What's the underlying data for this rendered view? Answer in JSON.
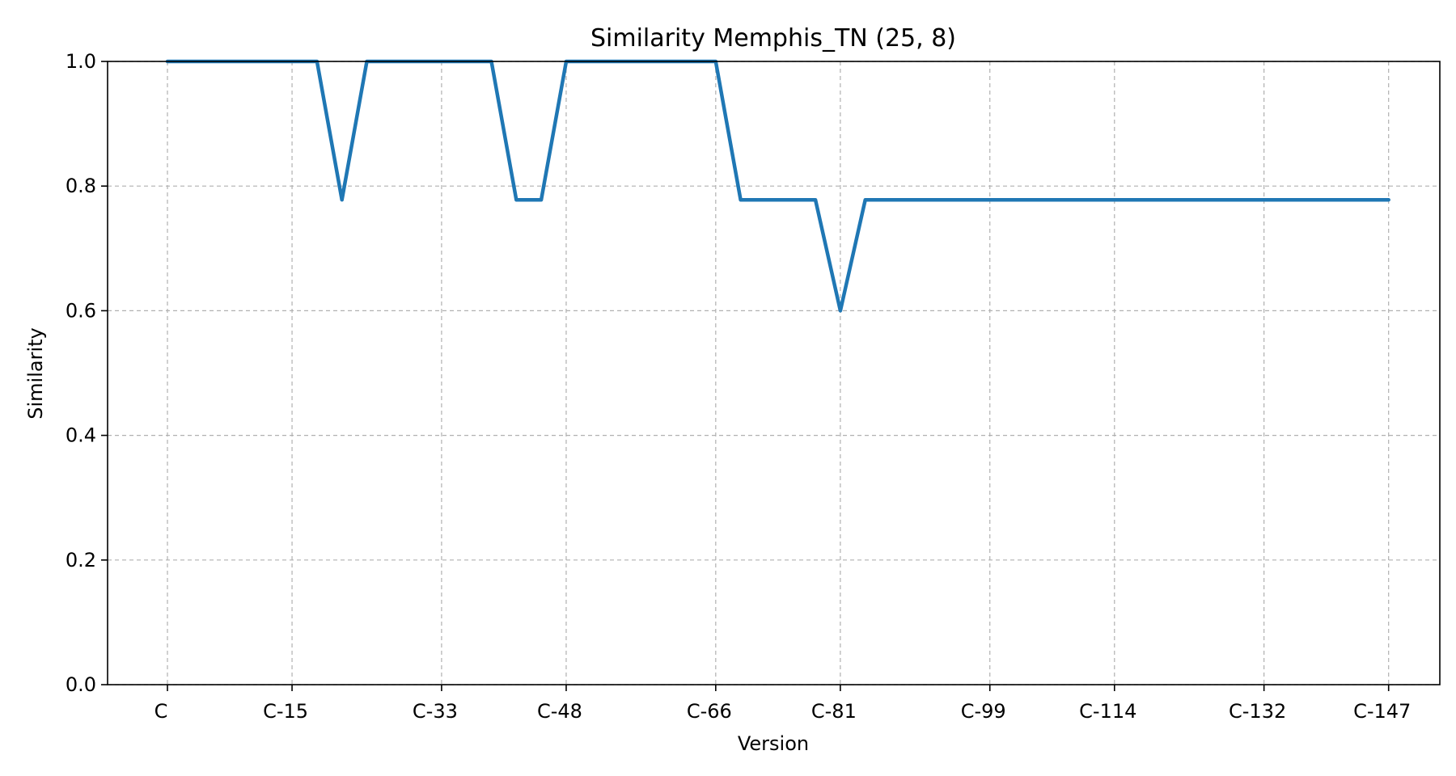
{
  "chart_data": {
    "type": "line",
    "title": "Similarity Memphis_TN (25, 8)",
    "xlabel": "Version",
    "ylabel": "Similarity",
    "ylim": [
      0,
      1
    ],
    "grid": true,
    "x_tick_labels": [
      "C",
      "C-15",
      "C-33",
      "C-48",
      "C-66",
      "C-81",
      "C-99",
      "C-114",
      "C-132",
      "C-147"
    ],
    "y_tick_labels": [
      "0.0",
      "0.2",
      "0.4",
      "0.6",
      "0.8",
      "1.0"
    ],
    "y_ticks": [
      0,
      0.2,
      0.4,
      0.6,
      0.8,
      1.0
    ],
    "series": [
      {
        "color": "#1f77b4",
        "points": [
          {
            "x": "C",
            "y": 1.0
          },
          {
            "x": "C-18",
            "y": 1.0
          },
          {
            "x": "C-21",
            "y": 0.778
          },
          {
            "x": "C-24",
            "y": 1.0
          },
          {
            "x": "C-39",
            "y": 1.0
          },
          {
            "x": "C-42",
            "y": 0.778
          },
          {
            "x": "C-45",
            "y": 0.778
          },
          {
            "x": "C-48",
            "y": 1.0
          },
          {
            "x": "C-66",
            "y": 1.0
          },
          {
            "x": "C-69",
            "y": 0.778
          },
          {
            "x": "C-78",
            "y": 0.778
          },
          {
            "x": "C-81",
            "y": 0.6
          },
          {
            "x": "C-84",
            "y": 0.778
          },
          {
            "x": "C-147",
            "y": 0.778
          }
        ]
      }
    ]
  }
}
